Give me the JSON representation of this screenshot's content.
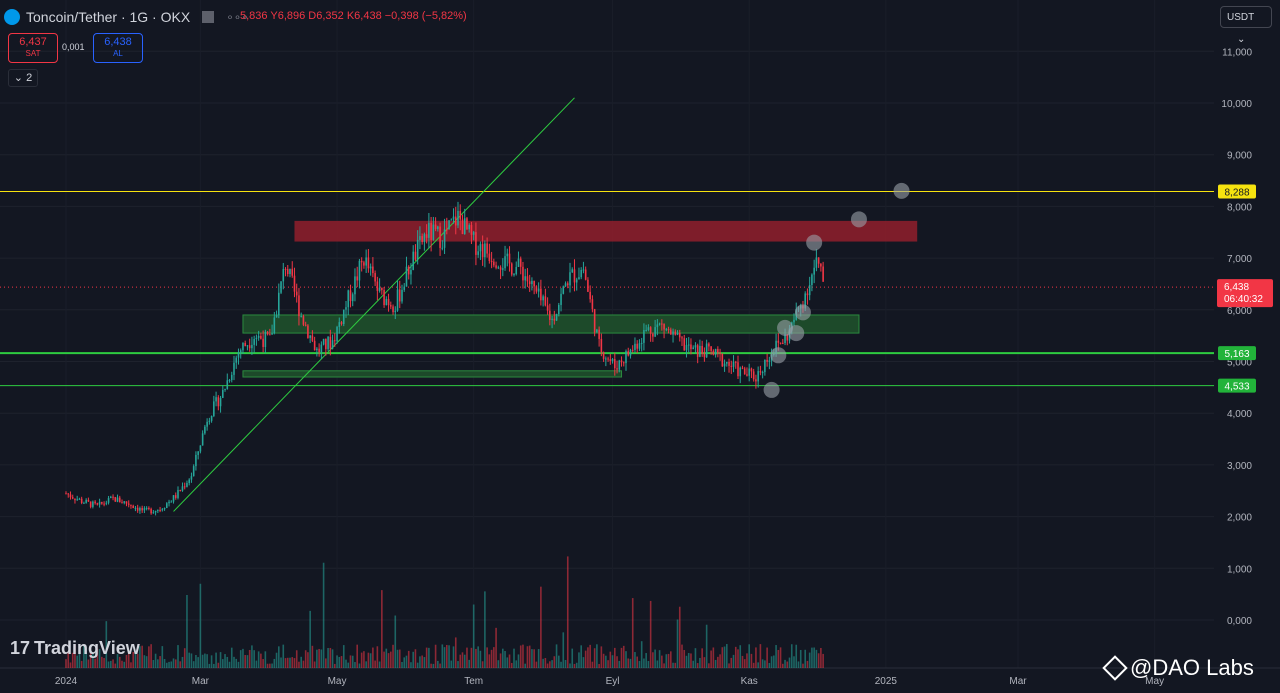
{
  "header": {
    "symbol_title": "Toncoin/Tether · 1G · OKX",
    "ohlc_text": "Y6,896 D6,352 K6,438 −0,398 (−5,82%)",
    "ohlc_open_partial": "5,836",
    "more_icon": "more-dots-icon"
  },
  "trade": {
    "sell_price": "6,437",
    "sell_label": "SAT",
    "spread": "0,001",
    "buy_price": "6,438",
    "buy_label": "AL"
  },
  "indicators_toggle": "2",
  "currency_selector": "USDT",
  "branding": {
    "tradingview": "TradingView",
    "watermark": "@DAO Labs"
  },
  "colors": {
    "background": "#131722",
    "up": "#26a69a",
    "down": "#f23645",
    "resistance_line": "#f6e30f",
    "support_line": "#2ecc40",
    "trend_line": "#2ecc40",
    "red_zone": "#8b1e2b",
    "green_zone": "#1e4d2b",
    "marker": "#9aa0a8"
  },
  "chart_data": {
    "type": "candlestick",
    "y_axis": {
      "ticks": [
        "11,000",
        "10,000",
        "9,000",
        "8,000",
        "7,000",
        "6,000",
        "5,000",
        "4,000",
        "3,000",
        "2,000",
        "1,000",
        "0,000"
      ],
      "ylim": [
        0,
        11.5
      ]
    },
    "x_axis": {
      "ticks": [
        "2024",
        "Mar",
        "May",
        "Tem",
        "Eyl",
        "Kas",
        "2025",
        "Mar",
        "May"
      ]
    },
    "price_labels": {
      "resistance": "8,288",
      "last_price": "6,438",
      "countdown": "06:40:32",
      "support_1": "5,163",
      "support_2": "4,533"
    },
    "levels": {
      "resistance": 8.288,
      "last": 6.438,
      "support_1": 5.163,
      "support_2": 4.533
    },
    "zones": {
      "red": {
        "from": "2024-04-12",
        "to": "2025-01-15",
        "low": 7.32,
        "high": 7.72
      },
      "green_1": {
        "from": "2024-03-20",
        "to": "2024-12-20",
        "low": 5.55,
        "high": 5.9
      },
      "green_2": {
        "from": "2024-03-20",
        "to": "2024-09-05",
        "low": 4.7,
        "high": 4.82
      }
    },
    "trend_line": {
      "from": [
        "2024-02-18",
        2.1
      ],
      "to": [
        "2024-08-15",
        10.1
      ]
    },
    "markers": [
      {
        "date": "2024-11-11",
        "value": 4.45
      },
      {
        "date": "2024-11-14",
        "value": 5.12
      },
      {
        "date": "2024-11-17",
        "value": 5.65
      },
      {
        "date": "2024-11-22",
        "value": 5.55
      },
      {
        "date": "2024-11-25",
        "value": 5.95
      },
      {
        "date": "2024-11-30",
        "value": 7.3
      },
      {
        "date": "2024-12-20",
        "value": 7.75
      },
      {
        "date": "2025-01-08",
        "value": 8.3
      }
    ],
    "series": [
      {
        "values": [
          [
            "2024-01-01",
            2.45
          ],
          [
            "2024-01-08",
            2.3
          ],
          [
            "2024-01-15",
            2.2
          ],
          [
            "2024-01-22",
            2.35
          ],
          [
            "2024-01-29",
            2.25
          ],
          [
            "2024-02-05",
            2.1
          ],
          [
            "2024-02-12",
            2.15
          ],
          [
            "2024-02-19",
            2.4
          ],
          [
            "2024-02-26",
            2.8
          ],
          [
            "2024-03-04",
            3.9
          ],
          [
            "2024-03-11",
            4.4
          ],
          [
            "2024-03-18",
            5.2
          ],
          [
            "2024-03-25",
            5.5
          ],
          [
            "2024-04-01",
            5.4
          ],
          [
            "2024-04-08",
            6.9
          ],
          [
            "2024-04-15",
            5.9
          ],
          [
            "2024-04-22",
            5.2
          ],
          [
            "2024-04-29",
            5.4
          ],
          [
            "2024-05-06",
            6.2
          ],
          [
            "2024-05-13",
            7.0
          ],
          [
            "2024-05-20",
            6.3
          ],
          [
            "2024-05-27",
            6.1
          ],
          [
            "2024-06-03",
            6.9
          ],
          [
            "2024-06-10",
            7.5
          ],
          [
            "2024-06-17",
            7.4
          ],
          [
            "2024-06-24",
            7.8
          ],
          [
            "2024-07-01",
            7.3
          ],
          [
            "2024-07-08",
            7.1
          ],
          [
            "2024-07-15",
            6.9
          ],
          [
            "2024-07-22",
            6.8
          ],
          [
            "2024-07-29",
            6.3
          ],
          [
            "2024-08-05",
            5.8
          ],
          [
            "2024-08-12",
            6.6
          ],
          [
            "2024-08-19",
            6.8
          ],
          [
            "2024-08-26",
            5.3
          ],
          [
            "2024-09-02",
            4.9
          ],
          [
            "2024-09-09",
            5.2
          ],
          [
            "2024-09-16",
            5.6
          ],
          [
            "2024-09-23",
            5.7
          ],
          [
            "2024-09-30",
            5.4
          ],
          [
            "2024-10-07",
            5.2
          ],
          [
            "2024-10-14",
            5.2
          ],
          [
            "2024-10-21",
            5.0
          ],
          [
            "2024-10-28",
            4.8
          ],
          [
            "2024-11-04",
            4.7
          ],
          [
            "2024-11-11",
            5.2
          ],
          [
            "2024-11-18",
            5.5
          ],
          [
            "2024-11-25",
            6.2
          ],
          [
            "2024-12-01",
            6.9
          ],
          [
            "2024-12-05",
            6.438
          ]
        ]
      }
    ]
  }
}
